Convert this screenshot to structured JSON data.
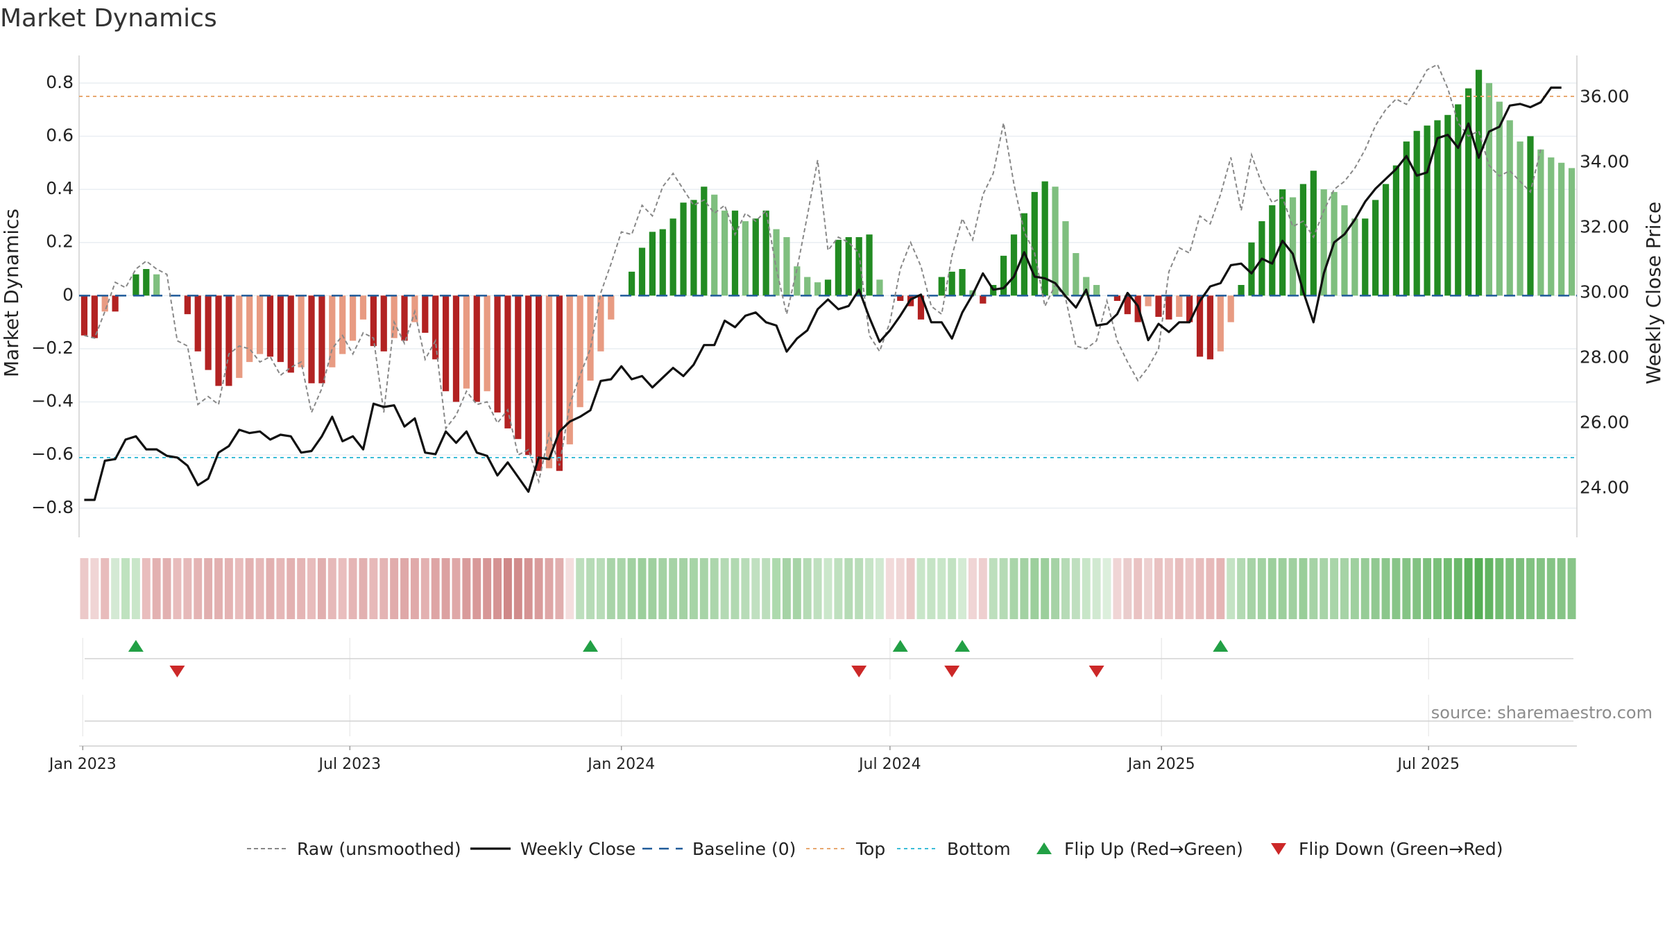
{
  "chart_data": {
    "title": "Market Dynamics",
    "type": "bar+line",
    "source": "source: sharemaestro.com",
    "left_axis": {
      "label": "Market Dynamics",
      "range": [
        -0.91,
        0.93
      ],
      "ticks": [
        -0.8,
        -0.6,
        -0.4,
        -0.2,
        0,
        0.2,
        0.4,
        0.6,
        0.8
      ],
      "tick_labels": [
        "−0.8",
        "−0.6",
        "−0.4",
        "−0.2",
        "0",
        "0.2",
        "0.4",
        "0.6",
        "0.8"
      ]
    },
    "right_axis": {
      "label": "Weekly Close Price",
      "range": [
        22.5,
        37.5
      ],
      "ticks": [
        24,
        26,
        28,
        30,
        32,
        34,
        36
      ],
      "tick_labels": [
        "24.00",
        "26.00",
        "28.00",
        "30.00",
        "32.00",
        "34.00",
        "36.00"
      ]
    },
    "x_axis": {
      "start": "2023-01-02",
      "end": "2025-09-29",
      "frequency": "weekly",
      "ticks": [
        "2023-01-01",
        "2023-07-01",
        "2024-01-01",
        "2024-07-01",
        "2025-01-01",
        "2025-07-01"
      ],
      "tick_labels": [
        "Jan 2023",
        "Jul 2023",
        "Jan 2024",
        "Jul 2024",
        "Jan 2025",
        "Jul 2025"
      ]
    },
    "top_line": 0.75,
    "bottom_line": -0.61,
    "baseline": 0,
    "colors": {
      "strong_green": "#228b22",
      "light_green": "#7fbf7f",
      "strong_red": "#b22222",
      "light_red": "#e89b82",
      "raw": "#888888",
      "close": "#111111",
      "baseline": "#1f5a99",
      "top": "#e8a870",
      "bottom": "#3bbdd8",
      "flip_up": "#22a045",
      "flip_down": "#cc2828"
    },
    "dynamics": [
      -0.15,
      -0.16,
      -0.06,
      -0.06,
      -0.0,
      0.08,
      0.1,
      0.08,
      -0.0,
      0.0,
      -0.07,
      -0.21,
      -0.28,
      -0.34,
      -0.34,
      -0.31,
      -0.25,
      -0.22,
      -0.23,
      -0.25,
      -0.29,
      -0.27,
      -0.33,
      -0.33,
      -0.27,
      -0.22,
      -0.17,
      -0.09,
      -0.19,
      -0.21,
      -0.16,
      -0.17,
      -0.1,
      -0.14,
      -0.24,
      -0.36,
      -0.4,
      -0.35,
      -0.4,
      -0.36,
      -0.44,
      -0.5,
      -0.54,
      -0.6,
      -0.66,
      -0.65,
      -0.66,
      -0.56,
      -0.42,
      -0.32,
      -0.21,
      -0.09,
      -0.0,
      0.09,
      0.18,
      0.24,
      0.25,
      0.29,
      0.35,
      0.36,
      0.41,
      0.38,
      0.32,
      0.32,
      0.28,
      0.29,
      0.32,
      0.25,
      0.22,
      0.11,
      0.07,
      0.05,
      0.06,
      0.21,
      0.22,
      0.22,
      0.23,
      0.06,
      -0.0,
      -0.02,
      -0.04,
      -0.09,
      0.0,
      0.07,
      0.09,
      0.1,
      0.02,
      -0.03,
      0.04,
      0.15,
      0.23,
      0.31,
      0.39,
      0.43,
      0.41,
      0.28,
      0.16,
      0.07,
      0.04,
      -0.0,
      -0.02,
      -0.07,
      -0.1,
      -0.04,
      -0.08,
      -0.09,
      -0.08,
      -0.1,
      -0.23,
      -0.24,
      -0.21,
      -0.1,
      0.04,
      0.2,
      0.28,
      0.34,
      0.4,
      0.37,
      0.42,
      0.47,
      0.4,
      0.39,
      0.34,
      0.29,
      0.29,
      0.36,
      0.42,
      0.49,
      0.58,
      0.62,
      0.64,
      0.66,
      0.68,
      0.72,
      0.78,
      0.85,
      0.8,
      0.73,
      0.66,
      0.58,
      0.6,
      0.55,
      0.52,
      0.5,
      0.48
    ],
    "raw": [
      -0.15,
      -0.16,
      -0.06,
      0.05,
      0.03,
      0.1,
      0.13,
      0.1,
      0.08,
      -0.17,
      -0.19,
      -0.41,
      -0.38,
      -0.41,
      -0.22,
      -0.19,
      -0.2,
      -0.25,
      -0.23,
      -0.3,
      -0.27,
      -0.25,
      -0.44,
      -0.35,
      -0.2,
      -0.15,
      -0.22,
      -0.14,
      -0.16,
      -0.44,
      -0.1,
      -0.18,
      -0.06,
      -0.24,
      -0.17,
      -0.5,
      -0.45,
      -0.36,
      -0.41,
      -0.4,
      -0.48,
      -0.43,
      -0.6,
      -0.58,
      -0.7,
      -0.52,
      -0.64,
      -0.41,
      -0.3,
      -0.2,
      0.01,
      0.12,
      0.24,
      0.23,
      0.34,
      0.3,
      0.41,
      0.46,
      0.4,
      0.34,
      0.36,
      0.31,
      0.34,
      0.23,
      0.31,
      0.28,
      0.32,
      0.1,
      -0.07,
      0.1,
      0.3,
      0.51,
      0.17,
      0.22,
      0.2,
      0.16,
      -0.15,
      -0.21,
      -0.1,
      0.1,
      0.2,
      0.11,
      -0.04,
      -0.07,
      0.15,
      0.29,
      0.21,
      0.38,
      0.46,
      0.65,
      0.42,
      0.24,
      0.16,
      -0.04,
      0.04,
      -0.01,
      -0.19,
      -0.2,
      -0.17,
      -0.02,
      -0.17,
      -0.25,
      -0.32,
      -0.27,
      -0.2,
      0.09,
      0.18,
      0.16,
      0.3,
      0.27,
      0.38,
      0.52,
      0.32,
      0.53,
      0.42,
      0.35,
      0.37,
      0.26,
      0.28,
      0.22,
      0.32,
      0.4,
      0.43,
      0.48,
      0.55,
      0.64,
      0.7,
      0.74,
      0.72,
      0.78,
      0.85,
      0.87,
      0.78,
      0.65,
      0.6,
      0.62,
      0.49,
      0.45,
      0.47,
      0.43,
      0.39,
      0.55
    ],
    "close": [
      23.65,
      23.65,
      24.85,
      24.9,
      25.5,
      25.6,
      25.2,
      25.2,
      25.0,
      24.95,
      24.7,
      24.1,
      24.3,
      25.1,
      25.3,
      25.8,
      25.7,
      25.75,
      25.5,
      25.65,
      25.6,
      25.1,
      25.15,
      25.6,
      26.2,
      25.45,
      25.6,
      25.2,
      26.6,
      26.5,
      26.55,
      25.9,
      26.15,
      25.1,
      25.05,
      25.75,
      25.4,
      25.75,
      25.1,
      25.0,
      24.4,
      24.8,
      24.35,
      23.9,
      24.95,
      24.9,
      25.75,
      26.05,
      26.2,
      26.4,
      27.3,
      27.35,
      27.75,
      27.35,
      27.45,
      27.1,
      27.4,
      27.7,
      27.45,
      27.8,
      28.4,
      28.4,
      29.15,
      28.95,
      29.3,
      29.4,
      29.1,
      29.0,
      28.2,
      28.6,
      28.85,
      29.5,
      29.8,
      29.5,
      29.6,
      30.1,
      29.25,
      28.5,
      28.85,
      29.3,
      29.8,
      29.95,
      29.1,
      29.1,
      28.6,
      29.4,
      29.95,
      30.6,
      30.1,
      30.15,
      30.5,
      31.25,
      30.5,
      30.45,
      30.3,
      29.9,
      29.55,
      30.1,
      29.0,
      29.05,
      29.35,
      30.0,
      29.6,
      28.55,
      29.05,
      28.8,
      29.1,
      29.1,
      29.75,
      30.2,
      30.3,
      30.85,
      30.9,
      30.6,
      31.05,
      30.9,
      31.6,
      31.2,
      30.05,
      29.1,
      30.6,
      31.55,
      31.8,
      32.25,
      32.8,
      33.2,
      33.5,
      33.8,
      34.2,
      33.6,
      33.7,
      34.75,
      34.85,
      34.45,
      35.2,
      34.15,
      34.95,
      35.1,
      35.75,
      35.8,
      35.7,
      35.85,
      36.3,
      36.3
    ],
    "strip_colors": [
      "#ecc9c9",
      "#f0d5d5",
      "#e8bcbc",
      "#d4e9d4",
      "#bfe2bf",
      "#c9e6c9",
      "#e9bdbd",
      "#e3b1b1",
      "#e2b0b0",
      "#e8bcbc",
      "#e6b9b9",
      "#e4b4b4",
      "#e1afaf",
      "#e2b0b0",
      "#e4b3b3",
      "#e8bcbc",
      "#e3b1b1",
      "#e6b8b8",
      "#e2b0b0",
      "#e6b7b7",
      "#e3b1b1",
      "#e5b5b5",
      "#e8bcbc",
      "#e1afaf",
      "#e6b9b9",
      "#e9bebe",
      "#e5b5b5",
      "#e2b0b0",
      "#e7b9b9",
      "#e4b4b4",
      "#e1acac",
      "#dfa8a8",
      "#e0aaaa",
      "#e3b1b1",
      "#dea5a5",
      "#dca1a1",
      "#dfa7a7",
      "#d99b9b",
      "#d89999",
      "#d79696",
      "#d59393",
      "#cf8888",
      "#d18c8c",
      "#d59393",
      "#d99b9b",
      "#dea6a6",
      "#e1aeae",
      "#f4dede",
      "#bddfbd",
      "#b6dbb6",
      "#b8dcb8",
      "#a8d4a8",
      "#a9d5a9",
      "#a1d1a1",
      "#9ccf9c",
      "#9fd09f",
      "#a4d2a4",
      "#a6d3a6",
      "#a4d2a4",
      "#a7d4a7",
      "#a8d4a8",
      "#acd6ac",
      "#b4dab4",
      "#b1d9b1",
      "#b8dcb8",
      "#c0e0c0",
      "#bcdebc",
      "#addaad",
      "#a6d3a6",
      "#a7d4a7",
      "#b5dbb5",
      "#bfe0bf",
      "#cbe7cb",
      "#bee0be",
      "#b5dbb5",
      "#b9ddb9",
      "#c7e4c7",
      "#d1e9d1",
      "#f2dada",
      "#f0d6d6",
      "#ecc9c9",
      "#c9e6c9",
      "#c5e4c5",
      "#c8e6c8",
      "#c2e2c2",
      "#d4ebd4",
      "#f0d5d5",
      "#eecfcf",
      "#bddfbd",
      "#b5dbb5",
      "#a9d5a9",
      "#a3d2a3",
      "#9ccf9c",
      "#9ccf9c",
      "#a6d3a6",
      "#b6dbb6",
      "#bfdfbf",
      "#c8e6c8",
      "#d1e9d1",
      "#dcefdc",
      "#f0d5d5",
      "#eacccc",
      "#eac3c3",
      "#edd0d0",
      "#e9c1c1",
      "#ebc6c6",
      "#e8bdbd",
      "#ebc6c6",
      "#e8bdbd",
      "#e7baba",
      "#e5b5b5",
      "#c4e3c4",
      "#b3dab3",
      "#a6d3a6",
      "#a2d2a2",
      "#9ccf9c",
      "#9ccf9c",
      "#a0d0a0",
      "#99ce99",
      "#a6d3a6",
      "#a8d4a8",
      "#a9d5a9",
      "#a6d3a6",
      "#9fd09f",
      "#97cc97",
      "#91c991",
      "#8cc78c",
      "#88c588",
      "#85c485",
      "#82c282",
      "#7dc07d",
      "#7ac07a",
      "#73bd73",
      "#6bb86b",
      "#5bb15b",
      "#55ae55",
      "#62b462",
      "#71bc71",
      "#7bc07b",
      "#7dbf7d",
      "#81c281",
      "#83c383",
      "#85c485",
      "#86c486",
      "#88c588"
    ],
    "flip_up": [
      "2023-02-06",
      "2023-12-11",
      "2024-07-08",
      "2024-08-19",
      "2025-02-10"
    ],
    "flip_down": [
      "2023-03-06",
      "2024-06-10",
      "2024-08-12",
      "2024-11-18"
    ],
    "legend": [
      "Raw (unsmoothed)",
      "Weekly Close",
      "Baseline (0)",
      "Top",
      "Bottom",
      "Flip Up (Red→Green)",
      "Flip Down (Green→Red)"
    ]
  }
}
